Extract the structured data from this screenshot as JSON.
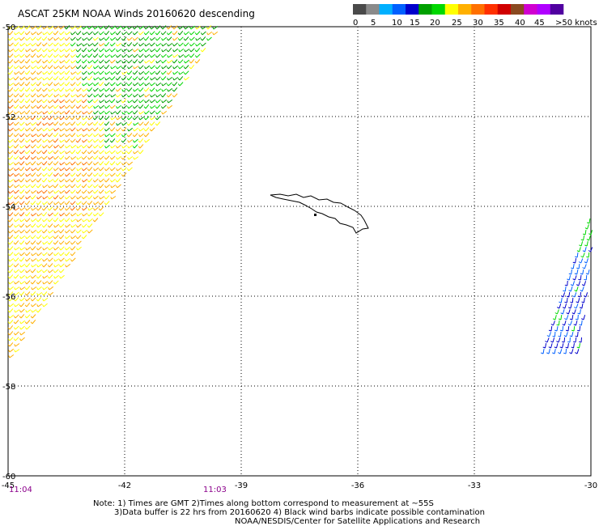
{
  "title": "ASCAT 25KM NOAA Winds 20160620 descending",
  "colorbar": {
    "segments": [
      "#4a4a4a",
      "#8a8a8a",
      "#00b0ff",
      "#0060ff",
      "#0000cc",
      "#00a000",
      "#00d800",
      "#ffff00",
      "#ffb000",
      "#ff7000",
      "#ff3000",
      "#d00000",
      "#8a4a20",
      "#d000d0",
      "#b000ff",
      "#5000a0"
    ],
    "tick_labels": [
      "0",
      "5",
      "10",
      "15",
      "20",
      "25",
      "30",
      "35",
      "40",
      "45",
      ">50 knots"
    ]
  },
  "map": {
    "lon_min": -45,
    "lon_max": -30,
    "lat_min": -60,
    "lat_max": -50,
    "x_ticks": [
      -45,
      -42,
      -39,
      -36,
      -33,
      -30
    ],
    "x_tick_labels": [
      "-45",
      "-42",
      "-39",
      "-36",
      "-33",
      "-30"
    ],
    "y_ticks": [
      -50,
      -52,
      -54,
      -56,
      -58,
      -60
    ],
    "y_tick_labels": [
      "-50",
      "-52",
      "-54",
      "-56",
      "-58",
      "-60"
    ],
    "time_labels": [
      {
        "lon": -45,
        "text": "11:04"
      },
      {
        "lon": -40,
        "text": "11:03"
      }
    ],
    "time_label_color": "#8b008b"
  },
  "notes": [
    "Note: 1) Times are GMT 2)Times along bottom correspond to measurement at ~55S",
    "3)Data buffer is 22 hrs from 20160620 4) Black wind barbs indicate possible contamination",
    "NOAA/NESDIS/Center for Satellite Applications and Research"
  ]
}
